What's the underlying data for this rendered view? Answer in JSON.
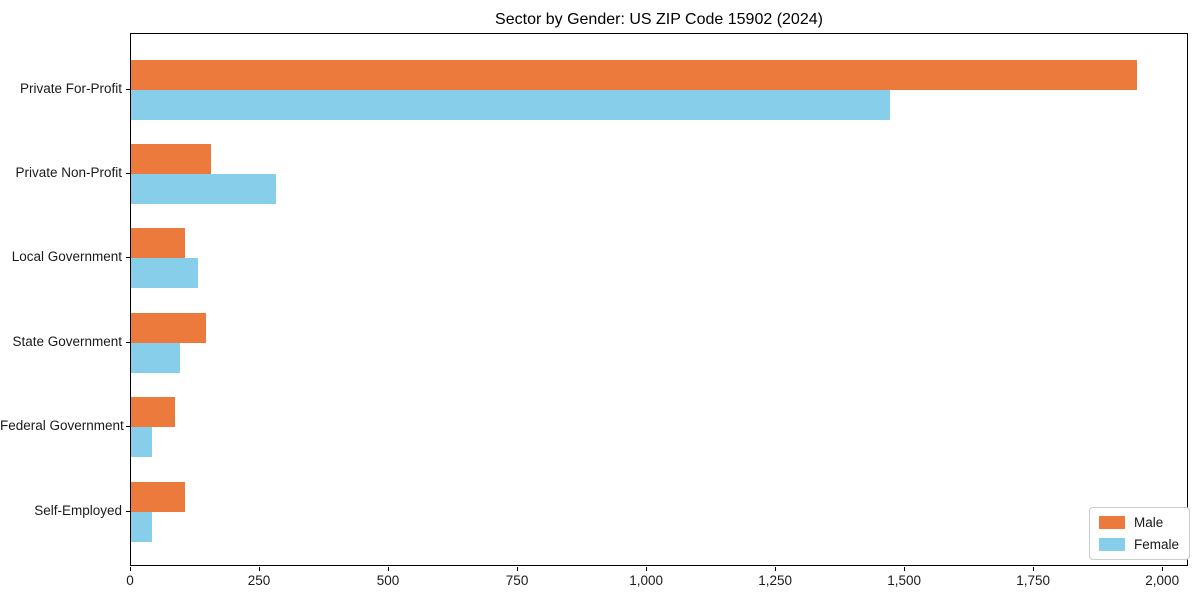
{
  "title": "Sector by Gender: US ZIP Code 15902 (2024)",
  "chart_data": {
    "type": "bar",
    "orientation": "horizontal",
    "title": "Sector by Gender: US ZIP Code 15902 (2024)",
    "xlabel": "",
    "ylabel": "",
    "categories": [
      "Private For-Profit",
      "Private Non-Profit",
      "Local Government",
      "State Government",
      "Federal Government",
      "Self-Employed"
    ],
    "series": [
      {
        "name": "Male",
        "color": "#EC7A3C",
        "values": [
          1950,
          155,
          105,
          145,
          85,
          105
        ]
      },
      {
        "name": "Female",
        "color": "#87CEEB",
        "values": [
          1470,
          280,
          130,
          95,
          40,
          40
        ]
      }
    ],
    "xlim": [
      0,
      2050
    ],
    "xticks": [
      0,
      250,
      500,
      750,
      1000,
      1250,
      1500,
      1750,
      2000
    ],
    "xtick_labels": [
      "0",
      "250",
      "500",
      "750",
      "1,000",
      "1,250",
      "1,500",
      "1,750",
      "2,000"
    ],
    "grid": false,
    "legend_position": "lower right",
    "colors": {
      "male": "#EC7A3C",
      "female": "#87CEEB",
      "spine": "#000000",
      "legend_border": "#cccccc"
    }
  }
}
